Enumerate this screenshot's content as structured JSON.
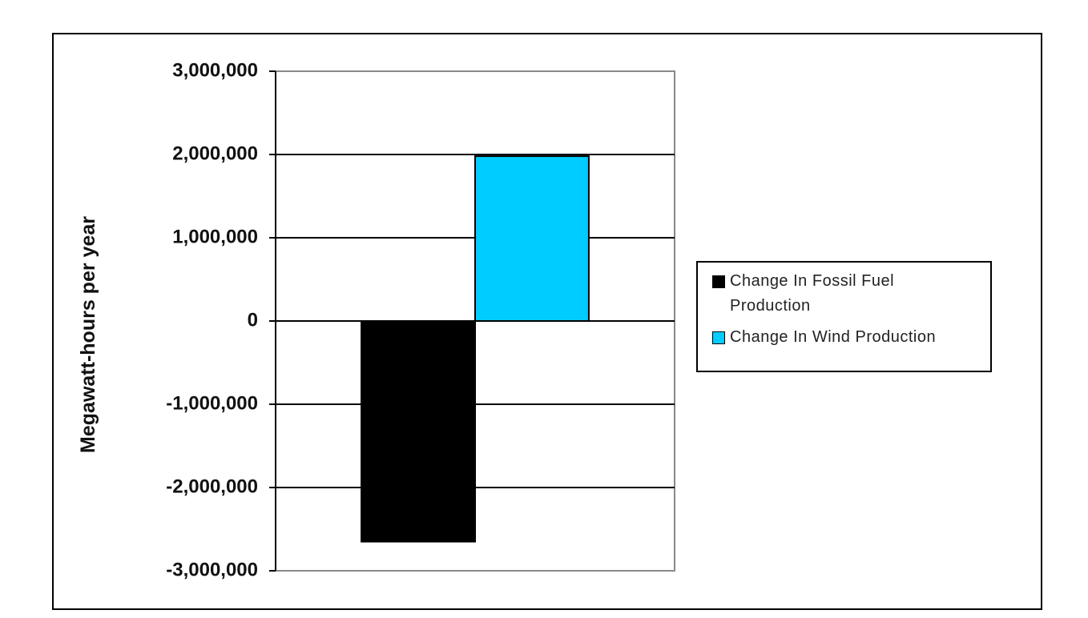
{
  "chart_data": {
    "type": "bar",
    "y_label": "Megawatt-hours per year",
    "categories": [
      null
    ],
    "series": [
      {
        "name": "Change In Fossil Fuel Production",
        "color": "#000000",
        "values": [
          -2650000
        ]
      },
      {
        "name": "Change In Wind Production",
        "color": "#00ccff",
        "values": [
          1980000
        ]
      }
    ],
    "ylim": [
      -3000000,
      3000000
    ],
    "yticks": [
      {
        "value": -3000000,
        "label": "-3,000,000"
      },
      {
        "value": -2000000,
        "label": "-2,000,000"
      },
      {
        "value": -1000000,
        "label": "-1,000,000"
      },
      0,
      {
        "value": 1000000,
        "label": "1,000,000"
      },
      {
        "value": 2000000,
        "label": "2,000,000"
      },
      {
        "value": 3000000,
        "label": "3,000,000"
      }
    ],
    "grid": true,
    "legend": "right"
  }
}
